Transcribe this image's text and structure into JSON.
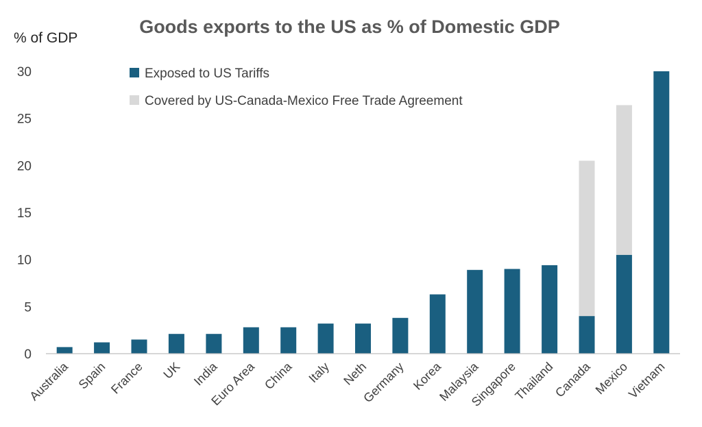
{
  "chart_data": {
    "type": "bar",
    "stacked": true,
    "title": "Goods exports to the US as % of Domestic GDP",
    "xlabel": "",
    "ylabel": "% of GDP",
    "ylim": [
      0,
      30
    ],
    "yticks": [
      0,
      5,
      10,
      15,
      20,
      25,
      30
    ],
    "grid": false,
    "legend_position": "top-center",
    "categories": [
      "Australia",
      "Spain",
      "France",
      "UK",
      "India",
      "Euro Area",
      "China",
      "Italy",
      "Neth",
      "Germany",
      "Korea",
      "Malaysia",
      "Singapore",
      "Thailand",
      "Canada",
      "Mexico",
      "Vietnam"
    ],
    "series": [
      {
        "name": "Exposed to US Tariffs",
        "color": "#1a5f80",
        "values": [
          0.7,
          1.2,
          1.5,
          2.1,
          2.1,
          2.8,
          2.8,
          3.2,
          3.2,
          3.8,
          6.3,
          8.9,
          9.0,
          9.4,
          4.0,
          10.5,
          30.0
        ]
      },
      {
        "name": "Covered by US-Canada-Mexico Free Trade Agreement",
        "color": "#d9d9d9",
        "values": [
          0,
          0,
          0,
          0,
          0,
          0,
          0,
          0,
          0,
          0,
          0,
          0,
          0,
          0,
          16.5,
          15.9,
          0
        ]
      }
    ]
  }
}
